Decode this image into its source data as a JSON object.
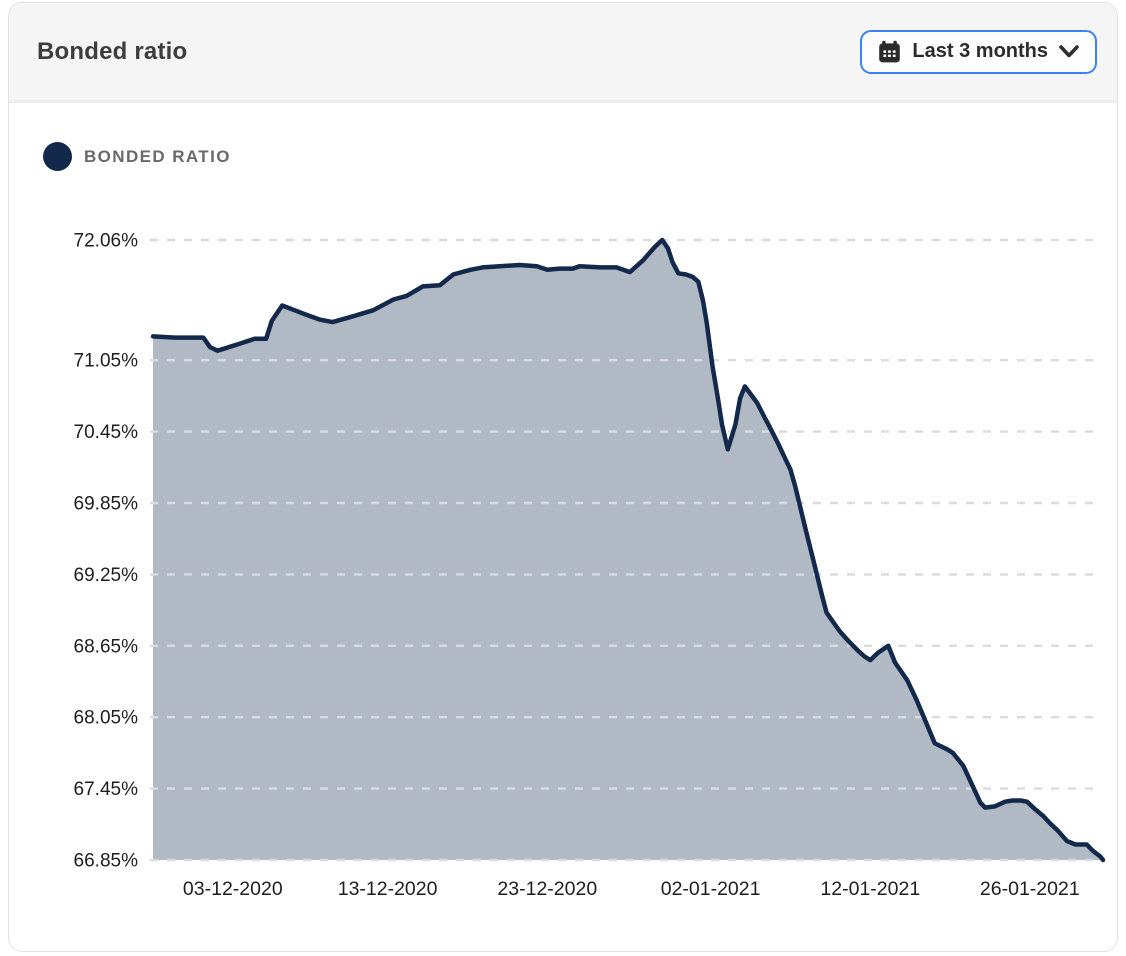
{
  "header": {
    "title": "Bonded ratio",
    "range_label": "Last 3 months"
  },
  "icons": {
    "dropdown_left": "calendar-icon",
    "dropdown_right": "chevron-down-icon"
  },
  "legend": {
    "label": "BONDED RATIO"
  },
  "colors": {
    "accent": "#3b82f6",
    "navy": "#13294b",
    "area_fill": "rgba(19,41,75,0.33)",
    "grid": "#d9dbe1",
    "header_bg": "#f5f5f6",
    "title_color": "#3d3d3d",
    "legend_color": "#696969",
    "tick_color": "#1e1e1e",
    "card_border": "#e2e2e2"
  },
  "chart_data": {
    "type": "area",
    "title": "Bonded ratio",
    "series_name": "BONDED RATIO",
    "xlabel": "",
    "ylabel": "",
    "grid": "horizontal-dashed",
    "legend_position": "top-left",
    "ylim": [
      66.85,
      72.06
    ],
    "yticks": [
      {
        "label": "72.06%",
        "value": 72.06
      },
      {
        "label": "71.05%",
        "value": 71.05
      },
      {
        "label": "70.45%",
        "value": 70.45
      },
      {
        "label": "69.85%",
        "value": 69.85
      },
      {
        "label": "69.25%",
        "value": 69.25
      },
      {
        "label": "68.65%",
        "value": 68.65
      },
      {
        "label": "68.05%",
        "value": 68.05
      },
      {
        "label": "67.45%",
        "value": 67.45
      },
      {
        "label": "66.85%",
        "value": 66.85
      }
    ],
    "xticks": [
      {
        "label": "03-12-2020",
        "f": 0.084
      },
      {
        "label": "13-12-2020",
        "f": 0.247
      },
      {
        "label": "23-12-2020",
        "f": 0.415
      },
      {
        "label": "02-01-2021",
        "f": 0.587
      },
      {
        "label": "12-01-2021",
        "f": 0.755
      },
      {
        "label": "26-01-2021",
        "f": 0.923
      }
    ],
    "points": [
      [
        0.0,
        71.25
      ],
      [
        0.023,
        71.24
      ],
      [
        0.053,
        71.24
      ],
      [
        0.06,
        71.16
      ],
      [
        0.068,
        71.13
      ],
      [
        0.092,
        71.19
      ],
      [
        0.107,
        71.23
      ],
      [
        0.119,
        71.23
      ],
      [
        0.125,
        71.38
      ],
      [
        0.136,
        71.51
      ],
      [
        0.149,
        71.47
      ],
      [
        0.162,
        71.43
      ],
      [
        0.176,
        71.39
      ],
      [
        0.189,
        71.37
      ],
      [
        0.211,
        71.42
      ],
      [
        0.232,
        71.47
      ],
      [
        0.253,
        71.56
      ],
      [
        0.267,
        71.59
      ],
      [
        0.284,
        71.67
      ],
      [
        0.302,
        71.68
      ],
      [
        0.316,
        71.77
      ],
      [
        0.334,
        71.81
      ],
      [
        0.347,
        71.83
      ],
      [
        0.365,
        71.84
      ],
      [
        0.386,
        71.85
      ],
      [
        0.404,
        71.84
      ],
      [
        0.415,
        71.81
      ],
      [
        0.428,
        71.82
      ],
      [
        0.442,
        71.82
      ],
      [
        0.449,
        71.84
      ],
      [
        0.471,
        71.83
      ],
      [
        0.488,
        71.83
      ],
      [
        0.502,
        71.79
      ],
      [
        0.516,
        71.89
      ],
      [
        0.528,
        72.0
      ],
      [
        0.536,
        72.06
      ],
      [
        0.542,
        71.99
      ],
      [
        0.547,
        71.87
      ],
      [
        0.553,
        71.78
      ],
      [
        0.561,
        71.77
      ],
      [
        0.568,
        71.75
      ],
      [
        0.574,
        71.71
      ],
      [
        0.579,
        71.55
      ],
      [
        0.583,
        71.36
      ],
      [
        0.589,
        71.0
      ],
      [
        0.595,
        70.71
      ],
      [
        0.599,
        70.51
      ],
      [
        0.605,
        70.3
      ],
      [
        0.613,
        70.51
      ],
      [
        0.618,
        70.73
      ],
      [
        0.623,
        70.83
      ],
      [
        0.636,
        70.69
      ],
      [
        0.643,
        70.58
      ],
      [
        0.649,
        70.49
      ],
      [
        0.658,
        70.35
      ],
      [
        0.665,
        70.23
      ],
      [
        0.671,
        70.13
      ],
      [
        0.676,
        69.99
      ],
      [
        0.686,
        69.66
      ],
      [
        0.695,
        69.37
      ],
      [
        0.704,
        69.08
      ],
      [
        0.709,
        68.93
      ],
      [
        0.715,
        68.86
      ],
      [
        0.723,
        68.77
      ],
      [
        0.732,
        68.69
      ],
      [
        0.742,
        68.61
      ],
      [
        0.749,
        68.56
      ],
      [
        0.755,
        68.53
      ],
      [
        0.763,
        68.59
      ],
      [
        0.774,
        68.65
      ],
      [
        0.781,
        68.51
      ],
      [
        0.794,
        68.36
      ],
      [
        0.804,
        68.19
      ],
      [
        0.813,
        68.02
      ],
      [
        0.823,
        67.83
      ],
      [
        0.836,
        67.78
      ],
      [
        0.842,
        67.75
      ],
      [
        0.853,
        67.64
      ],
      [
        0.86,
        67.52
      ],
      [
        0.871,
        67.33
      ],
      [
        0.876,
        67.29
      ],
      [
        0.886,
        67.3
      ],
      [
        0.897,
        67.34
      ],
      [
        0.905,
        67.35
      ],
      [
        0.913,
        67.35
      ],
      [
        0.92,
        67.34
      ],
      [
        0.928,
        67.28
      ],
      [
        0.937,
        67.22
      ],
      [
        0.944,
        67.16
      ],
      [
        0.952,
        67.1
      ],
      [
        0.962,
        67.01
      ],
      [
        0.971,
        66.98
      ],
      [
        0.983,
        66.98
      ],
      [
        0.989,
        66.93
      ],
      [
        0.997,
        66.88
      ],
      [
        1.0,
        66.85
      ]
    ]
  }
}
